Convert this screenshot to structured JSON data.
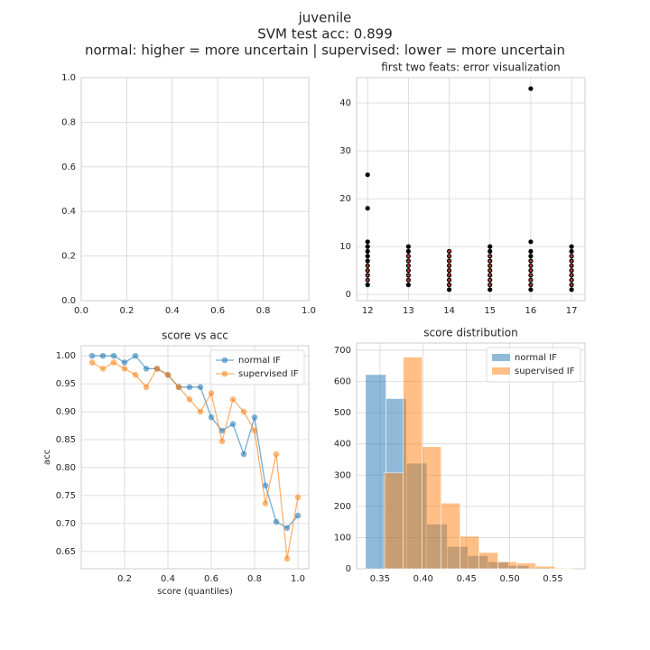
{
  "suptitle": [
    "juvenile",
    "SVM test acc: 0.899",
    "normal: higher = more uncertain | supervised: lower = more uncertain"
  ],
  "chart_data": [
    {
      "type": "scatter",
      "xlim": [
        0,
        1
      ],
      "ylim": [
        0,
        1
      ],
      "xticks": [
        {
          "value": 0,
          "label": "0.0"
        },
        {
          "value": 0.2,
          "label": "0.2"
        },
        {
          "value": 0.4,
          "label": "0.4"
        },
        {
          "value": 0.6,
          "label": "0.6"
        },
        {
          "value": 0.8,
          "label": "0.8"
        },
        {
          "value": 1,
          "label": "1.0"
        }
      ],
      "yticks": [
        {
          "value": 0,
          "label": "0.0"
        },
        {
          "value": 0.2,
          "label": "0.2"
        },
        {
          "value": 0.4,
          "label": "0.4"
        },
        {
          "value": 0.6,
          "label": "0.6"
        },
        {
          "value": 0.8,
          "label": "0.8"
        },
        {
          "value": 1,
          "label": "1.0"
        }
      ],
      "grid": true,
      "series": []
    },
    {
      "type": "scatter",
      "title": "first two feats: error visualization",
      "xlim": [
        11.73,
        17.33
      ],
      "ylim": [
        -1.3,
        45.3
      ],
      "xticks": [
        12,
        13,
        14,
        15,
        16,
        17
      ],
      "yticks": [
        0,
        10,
        20,
        30,
        40
      ],
      "grid": true,
      "series": [
        {
          "color": "#000000",
          "x": [
            12,
            12,
            12,
            12,
            12,
            12,
            12,
            12,
            12,
            12,
            12,
            12,
            13,
            13,
            13,
            13,
            13,
            13,
            13,
            13,
            13,
            14,
            14,
            14,
            14,
            14,
            14,
            14,
            14,
            14,
            15,
            15,
            15,
            15,
            15,
            15,
            15,
            15,
            15,
            15,
            16,
            16,
            16,
            16,
            16,
            16,
            16,
            16,
            16,
            16,
            16,
            17,
            17,
            17,
            17,
            17,
            17,
            17,
            17,
            17,
            17
          ],
          "values": [
            2,
            3,
            4,
            5,
            6,
            7,
            8,
            9,
            10,
            11,
            18,
            25,
            2,
            3,
            4,
            5,
            6,
            7,
            8,
            9,
            10,
            1,
            2,
            3,
            4,
            5,
            6,
            7,
            8,
            9,
            1,
            2,
            3,
            4,
            5,
            6,
            7,
            8,
            9,
            10,
            1,
            2,
            3,
            4,
            5,
            6,
            7,
            8,
            9,
            11,
            43,
            1,
            2,
            3,
            4,
            5,
            6,
            7,
            8,
            9,
            10
          ]
        },
        {
          "color": "#c0392b",
          "x": [
            12,
            12,
            12,
            12,
            13,
            13,
            13,
            13,
            13,
            13,
            14,
            14,
            14,
            14,
            14,
            14,
            14,
            14,
            15,
            15,
            15,
            15,
            15,
            15,
            15,
            16,
            16,
            16,
            16,
            16,
            16,
            17,
            17,
            17,
            17,
            17,
            17,
            17
          ],
          "values": [
            3,
            4,
            5,
            6,
            3,
            4,
            5,
            6,
            7,
            8,
            2,
            3,
            4,
            5,
            6,
            7,
            8,
            9,
            2,
            3,
            4,
            5,
            6,
            7,
            8,
            2,
            3,
            4,
            5,
            6,
            7,
            2,
            3,
            4,
            5,
            6,
            7,
            8
          ]
        }
      ]
    },
    {
      "type": "line",
      "title": "score vs acc",
      "x_label": "score (quantiles)",
      "y_label": "acc",
      "xlim": [
        0.0,
        1.05
      ],
      "ylim": [
        0.619,
        1.018
      ],
      "xticks": [
        0.2,
        0.4,
        0.6,
        0.8,
        {
          "value": 1,
          "label": "1.0"
        }
      ],
      "yticks": [
        {
          "value": 0.65,
          "label": "0.65"
        },
        {
          "value": 0.7,
          "label": "0.70"
        },
        {
          "value": 0.75,
          "label": "0.75"
        },
        {
          "value": 0.8,
          "label": "0.80"
        },
        {
          "value": 0.85,
          "label": "0.85"
        },
        {
          "value": 0.9,
          "label": "0.90"
        },
        {
          "value": 0.95,
          "label": "0.95"
        },
        {
          "value": 1,
          "label": "1.00"
        }
      ],
      "grid": true,
      "legend": "upper right",
      "x": [
        0.05,
        0.1,
        0.15,
        0.2,
        0.25,
        0.3,
        0.35,
        0.4,
        0.45,
        0.5,
        0.55,
        0.6,
        0.65,
        0.7,
        0.75,
        0.8,
        0.85,
        0.9,
        0.95,
        1.0
      ],
      "series": [
        {
          "name": "normal IF",
          "color": "#1f77b4",
          "values": [
            1.0,
            1.0,
            1.0,
            0.988,
            1.0,
            0.977,
            0.977,
            0.966,
            0.944,
            0.944,
            0.944,
            0.89,
            0.866,
            0.878,
            0.824,
            0.89,
            0.768,
            0.703,
            0.692,
            0.714
          ]
        },
        {
          "name": "supervised IF",
          "color": "#ff7f0e",
          "values": [
            0.988,
            0.977,
            0.988,
            0.977,
            0.966,
            0.944,
            0.977,
            0.966,
            0.944,
            0.922,
            0.9,
            0.933,
            0.847,
            0.922,
            0.9,
            0.866,
            0.736,
            0.824,
            0.637,
            0.747
          ]
        }
      ]
    },
    {
      "type": "histogram",
      "title": "score distribution",
      "xlim": [
        0.323,
        0.587
      ],
      "ylim": [
        0,
        723
      ],
      "xticks": [
        0.35,
        {
          "value": 0.4,
          "label": "0.40"
        },
        0.45,
        {
          "value": 0.5,
          "label": "0.50"
        },
        0.55
      ],
      "yticks": [
        0,
        100,
        200,
        300,
        400,
        500,
        600,
        700
      ],
      "grid": true,
      "legend": "upper right",
      "series": [
        {
          "name": "normal IF",
          "color": "#1f77b4",
          "bins": [
            0.3333,
            0.357,
            0.3806,
            0.4042,
            0.4278,
            0.4514,
            0.475,
            0.4986,
            0.5222,
            0.5458,
            0.5694
          ],
          "values": [
            622,
            545,
            338,
            143,
            71,
            42,
            22,
            10,
            3,
            2
          ]
        },
        {
          "name": "supervised IF",
          "color": "#ff7f0e",
          "bins": [
            0.355,
            0.3769,
            0.3988,
            0.4207,
            0.4426,
            0.4645,
            0.4864,
            0.5083,
            0.5302,
            0.5521,
            0.574
          ],
          "values": [
            307,
            678,
            391,
            210,
            104,
            52,
            22,
            18,
            8,
            2
          ]
        }
      ]
    }
  ]
}
